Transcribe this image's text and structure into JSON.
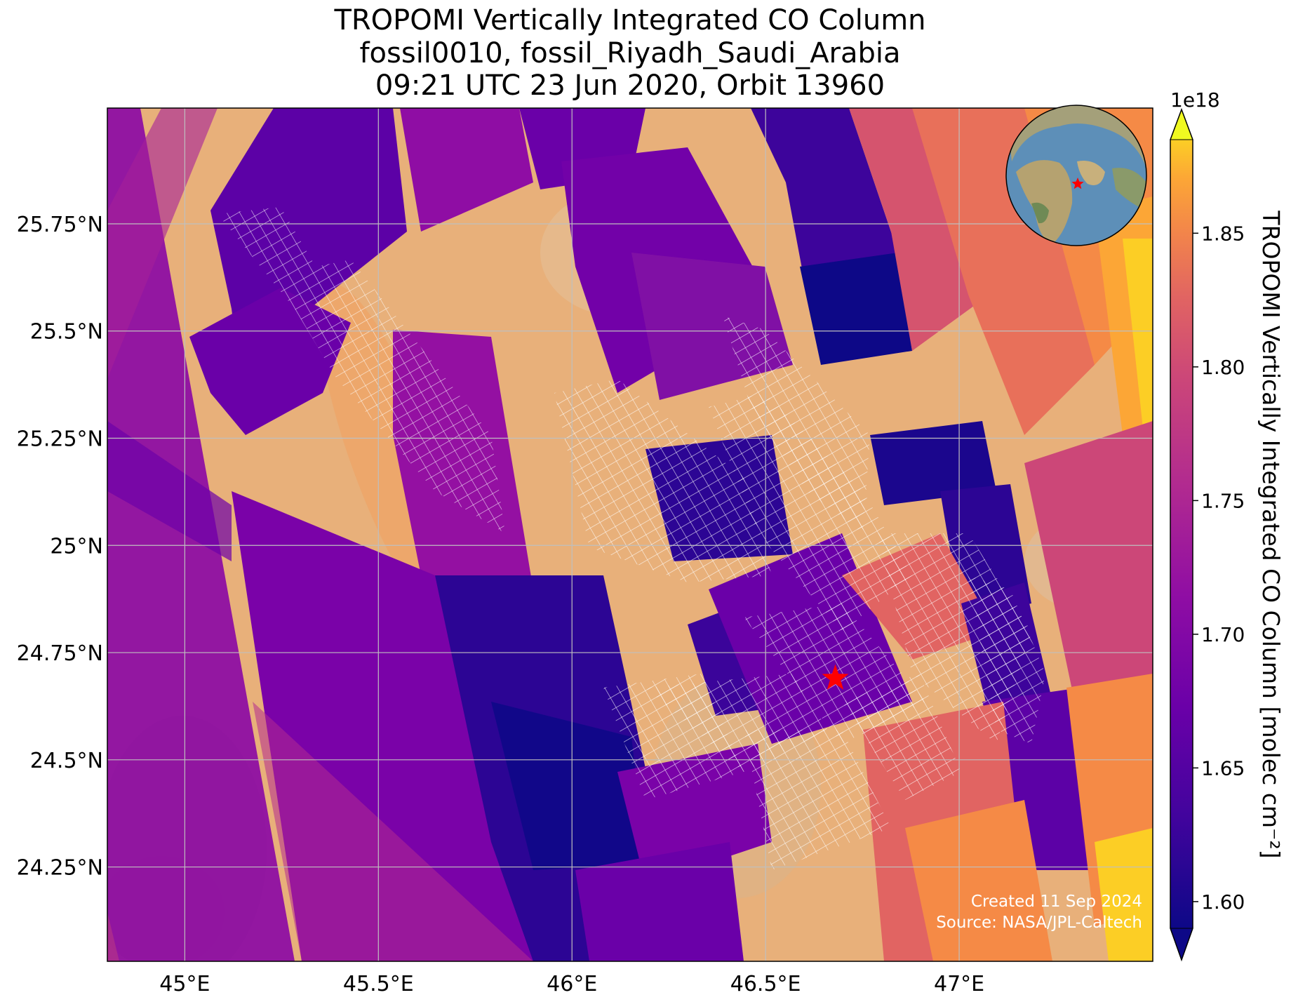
{
  "title": {
    "line1": "TROPOMI Vertically Integrated CO Column",
    "line2": "fossil0010, fossil_Riyadh_Saudi_Arabia",
    "line3": "09:21 UTC 23 Jun 2020, Orbit 13960"
  },
  "map": {
    "lon_range": [
      44.8,
      47.5
    ],
    "lat_range": [
      24.03,
      26.02
    ],
    "x_ticks": [
      {
        "value": 45.0,
        "label": "45°E"
      },
      {
        "value": 45.5,
        "label": "45.5°E"
      },
      {
        "value": 46.0,
        "label": "46°E"
      },
      {
        "value": 46.5,
        "label": "46.5°E"
      },
      {
        "value": 47.0,
        "label": "47°E"
      }
    ],
    "y_ticks": [
      {
        "value": 25.75,
        "label": "25.75°N"
      },
      {
        "value": 25.5,
        "label": "25.5°N"
      },
      {
        "value": 25.25,
        "label": "25.25°N"
      },
      {
        "value": 25.0,
        "label": "25°N"
      },
      {
        "value": 24.75,
        "label": "24.75°N"
      },
      {
        "value": 24.5,
        "label": "24.5°N"
      },
      {
        "value": 24.25,
        "label": "24.25°N"
      }
    ],
    "gridlines": true,
    "target_marker": {
      "lon": 46.68,
      "lat": 24.69,
      "symbol": "star",
      "color": "#ff0000"
    },
    "inset_globe": {
      "position": "top-right",
      "marker_color": "#ff0000"
    },
    "credits": {
      "created": "Created 11 Sep 2024",
      "source": "Source: NASA/JPL-Caltech"
    }
  },
  "colorbar": {
    "label": "TROPOMI Vertically Integrated CO Column [molec cm⁻²]",
    "exponent": "1e18",
    "range": [
      1.59,
      1.885
    ],
    "ticks": [
      "1.60",
      "1.65",
      "1.70",
      "1.75",
      "1.80",
      "1.85"
    ],
    "colormap": "plasma",
    "extend": "both"
  }
}
